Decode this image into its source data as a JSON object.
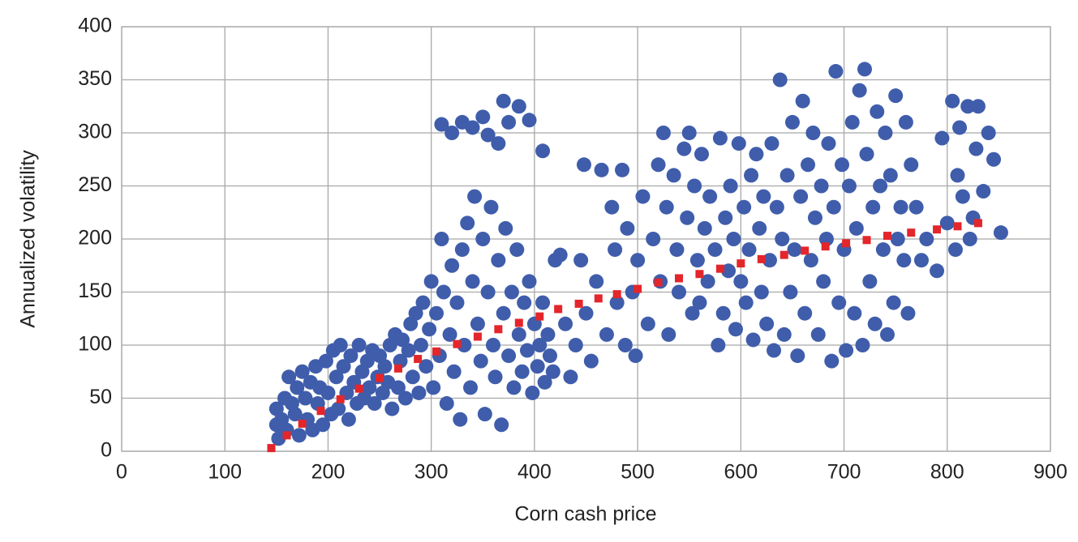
{
  "chart_data": {
    "type": "scatter",
    "xlabel": "Corn cash price",
    "ylabel": "Annualized volatility",
    "xlim": [
      0,
      900
    ],
    "xticks": [
      0,
      100,
      200,
      300,
      400,
      500,
      600,
      700,
      800,
      900
    ],
    "ylim": [
      0,
      400
    ],
    "yticks": [
      0,
      50,
      100,
      150,
      200,
      250,
      300,
      350,
      400
    ],
    "grid": true,
    "series": [
      {
        "color": "#3f5dab",
        "marker": "circle",
        "x": [
          150,
          150,
          152,
          155,
          158,
          160,
          162,
          165,
          168,
          170,
          172,
          175,
          178,
          180,
          183,
          185,
          188,
          190,
          192,
          195,
          198,
          200,
          203,
          205,
          208,
          210,
          212,
          215,
          218,
          220,
          222,
          225,
          228,
          230,
          233,
          235,
          238,
          240,
          243,
          245,
          248,
          250,
          253,
          255,
          258,
          260,
          262,
          265,
          268,
          270,
          272,
          275,
          278,
          280,
          282,
          285,
          288,
          290,
          292,
          295,
          298,
          300,
          302,
          305,
          308,
          310,
          312,
          315,
          318,
          320,
          322,
          325,
          328,
          330,
          332,
          335,
          338,
          340,
          342,
          345,
          348,
          350,
          352,
          355,
          358,
          360,
          362,
          365,
          368,
          370,
          372,
          375,
          378,
          380,
          383,
          385,
          388,
          390,
          393,
          395,
          398,
          400,
          403,
          405,
          408,
          410,
          413,
          415,
          418,
          420,
          310,
          320,
          330,
          340,
          350,
          355,
          365,
          370,
          375,
          385,
          395,
          408,
          425,
          430,
          435,
          440,
          445,
          448,
          450,
          455,
          460,
          465,
          470,
          475,
          478,
          480,
          485,
          488,
          490,
          495,
          498,
          500,
          505,
          510,
          515,
          520,
          522,
          525,
          528,
          530,
          535,
          538,
          540,
          545,
          548,
          550,
          553,
          555,
          558,
          560,
          562,
          565,
          568,
          570,
          575,
          578,
          580,
          583,
          585,
          588,
          590,
          593,
          595,
          598,
          600,
          603,
          605,
          608,
          610,
          612,
          615,
          618,
          620,
          622,
          625,
          628,
          630,
          632,
          635,
          638,
          640,
          642,
          645,
          648,
          650,
          652,
          655,
          658,
          660,
          662,
          665,
          668,
          670,
          672,
          675,
          678,
          680,
          683,
          685,
          688,
          690,
          692,
          695,
          698,
          700,
          702,
          705,
          708,
          710,
          712,
          715,
          718,
          720,
          722,
          725,
          728,
          730,
          732,
          735,
          738,
          740,
          742,
          745,
          748,
          750,
          752,
          755,
          758,
          760,
          762,
          765,
          770,
          775,
          780,
          790,
          795,
          800,
          805,
          808,
          810,
          812,
          815,
          820,
          822,
          825,
          828,
          830,
          835,
          840,
          845,
          852
        ],
        "values": [
          40,
          25,
          12,
          30,
          50,
          20,
          70,
          45,
          35,
          60,
          15,
          75,
          50,
          30,
          65,
          20,
          80,
          45,
          60,
          25,
          85,
          55,
          35,
          95,
          70,
          40,
          100,
          80,
          55,
          30,
          90,
          65,
          45,
          100,
          75,
          50,
          85,
          60,
          95,
          45,
          70,
          90,
          55,
          80,
          65,
          100,
          40,
          110,
          60,
          85,
          105,
          50,
          95,
          120,
          70,
          130,
          55,
          100,
          140,
          80,
          115,
          160,
          60,
          130,
          90,
          200,
          150,
          45,
          110,
          175,
          75,
          140,
          30,
          190,
          100,
          215,
          60,
          160,
          240,
          120,
          85,
          200,
          35,
          150,
          230,
          100,
          70,
          180,
          25,
          130,
          210,
          90,
          150,
          60,
          190,
          110,
          75,
          140,
          95,
          160,
          55,
          120,
          80,
          100,
          140,
          65,
          110,
          90,
          75,
          180,
          308,
          300,
          310,
          305,
          315,
          298,
          290,
          330,
          310,
          325,
          312,
          283,
          185,
          120,
          70,
          100,
          180,
          270,
          130,
          85,
          160,
          265,
          110,
          230,
          190,
          140,
          265,
          100,
          210,
          150,
          90,
          180,
          240,
          120,
          200,
          270,
          160,
          300,
          230,
          110,
          260,
          190,
          150,
          285,
          220,
          300,
          130,
          250,
          180,
          140,
          280,
          210,
          160,
          240,
          190,
          100,
          295,
          130,
          220,
          170,
          250,
          200,
          115,
          290,
          160,
          230,
          140,
          190,
          260,
          105,
          280,
          210,
          150,
          240,
          120,
          180,
          290,
          95,
          230,
          350,
          200,
          110,
          260,
          150,
          310,
          190,
          90,
          240,
          330,
          130,
          270,
          180,
          300,
          220,
          110,
          250,
          160,
          200,
          290,
          85,
          230,
          358,
          140,
          270,
          190,
          95,
          250,
          310,
          130,
          210,
          340,
          100,
          360,
          280,
          160,
          230,
          120,
          320,
          250,
          190,
          300,
          110,
          260,
          140,
          335,
          200,
          230,
          180,
          310,
          130,
          270,
          230,
          180,
          200,
          170,
          295,
          215,
          330,
          190,
          260,
          305,
          240,
          325,
          200,
          220,
          285,
          325,
          245,
          300,
          275,
          206
        ]
      },
      {
        "color": "#e3262b",
        "marker": "square",
        "x": [
          145,
          160,
          175,
          193,
          212,
          230,
          250,
          268,
          287,
          305,
          325,
          345,
          365,
          385,
          405,
          423,
          443,
          462,
          480,
          500,
          520,
          540,
          560,
          580,
          600,
          620,
          642,
          662,
          682,
          702,
          722,
          742,
          765,
          790,
          810,
          830
        ],
        "values": [
          3,
          15,
          26,
          38,
          49,
          59,
          69,
          78,
          87,
          94,
          101,
          108,
          115,
          121,
          127,
          134,
          139,
          144,
          148,
          153,
          159,
          163,
          167,
          172,
          177,
          181,
          185,
          189,
          193,
          196,
          199,
          203,
          206,
          209,
          212,
          215
        ]
      }
    ]
  }
}
